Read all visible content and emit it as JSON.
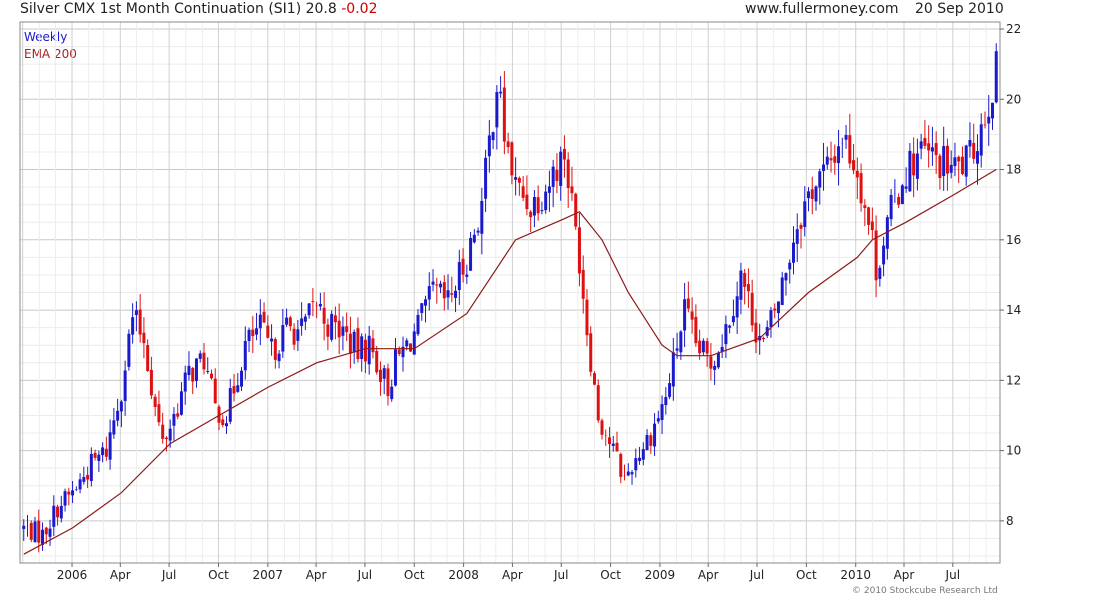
{
  "header": {
    "title": "Silver CMX 1st Month Continuation (SI1) 20.8",
    "change": "-0.02",
    "site": "www.fullermoney.com",
    "date": "20 Sep 2010",
    "copyright": "© 2010 Stockcube Research Ltd"
  },
  "legend": {
    "primary": "Weekly",
    "overlay": "EMA 200"
  },
  "colors": {
    "up": "#1a1acc",
    "down": "#dd1111",
    "ema": "#8b1a1a",
    "grid": "#d8d8d8"
  },
  "chart_data": {
    "type": "candlestick",
    "timeframe": "Weekly",
    "ylim": [
      6.8,
      22.2
    ],
    "y_ticks": [
      8,
      10,
      12,
      14,
      16,
      18,
      20,
      22
    ],
    "x_ticks": [
      "2006",
      "Apr",
      "Jul",
      "Oct",
      "2007",
      "Apr",
      "Jul",
      "Oct",
      "2008",
      "Apr",
      "Jul",
      "Oct",
      "2009",
      "Apr",
      "Jul",
      "Oct",
      "2010",
      "Apr",
      "Jul"
    ],
    "grid": true,
    "close_path": [
      [
        "2005-10-03",
        7.8
      ],
      [
        "2005-11-07",
        7.6
      ],
      [
        "2005-12-05",
        8.4
      ],
      [
        "2006-01-02",
        8.8
      ],
      [
        "2006-02-06",
        9.6
      ],
      [
        "2006-03-06",
        10.0
      ],
      [
        "2006-04-03",
        11.8
      ],
      [
        "2006-04-24",
        13.8
      ],
      [
        "2006-05-15",
        13.2
      ],
      [
        "2006-06-05",
        11.2
      ],
      [
        "2006-06-19",
        10.2
      ],
      [
        "2006-07-10",
        11.0
      ],
      [
        "2006-08-07",
        12.2
      ],
      [
        "2006-09-04",
        12.6
      ],
      [
        "2006-09-25",
        11.2
      ],
      [
        "2006-10-16",
        11.0
      ],
      [
        "2006-11-20",
        13.0
      ],
      [
        "2006-12-18",
        13.5
      ],
      [
        "2007-01-08",
        12.8
      ],
      [
        "2007-02-05",
        13.5
      ],
      [
        "2007-03-05",
        13.4
      ],
      [
        "2007-04-02",
        14.2
      ],
      [
        "2007-04-23",
        13.6
      ],
      [
        "2007-05-21",
        13.4
      ],
      [
        "2007-06-18",
        12.8
      ],
      [
        "2007-07-09",
        13.0
      ],
      [
        "2007-08-13",
        11.8
      ],
      [
        "2007-08-27",
        12.5
      ],
      [
        "2007-09-17",
        13.0
      ],
      [
        "2007-10-08",
        13.5
      ],
      [
        "2007-11-05",
        14.5
      ],
      [
        "2007-12-03",
        14.2
      ],
      [
        "2008-01-07",
        15.5
      ],
      [
        "2008-02-04",
        17.0
      ],
      [
        "2008-03-03",
        20.5
      ],
      [
        "2008-03-17",
        19.0
      ],
      [
        "2008-04-07",
        17.5
      ],
      [
        "2008-05-05",
        17.0
      ],
      [
        "2008-06-02",
        17.5
      ],
      [
        "2008-07-07",
        18.5
      ],
      [
        "2008-08-04",
        15.5
      ],
      [
        "2008-08-18",
        13.5
      ],
      [
        "2008-09-08",
        11.0
      ],
      [
        "2008-10-06",
        10.0
      ],
      [
        "2008-10-27",
        9.2
      ],
      [
        "2008-11-17",
        9.8
      ],
      [
        "2008-12-15",
        10.5
      ],
      [
        "2009-01-12",
        11.5
      ],
      [
        "2009-02-16",
        14.0
      ],
      [
        "2009-03-09",
        13.0
      ],
      [
        "2009-04-06",
        12.5
      ],
      [
        "2009-05-04",
        13.5
      ],
      [
        "2009-06-01",
        15.0
      ],
      [
        "2009-06-29",
        13.5
      ],
      [
        "2009-07-13",
        13.0
      ],
      [
        "2009-08-10",
        14.3
      ],
      [
        "2009-09-14",
        16.5
      ],
      [
        "2009-10-12",
        17.5
      ],
      [
        "2009-11-09",
        18.0
      ],
      [
        "2009-12-07",
        19.0
      ],
      [
        "2010-01-04",
        18.0
      ],
      [
        "2010-02-01",
        16.0
      ],
      [
        "2010-02-08",
        15.2
      ],
      [
        "2010-03-08",
        16.8
      ],
      [
        "2010-04-05",
        18.0
      ],
      [
        "2010-05-03",
        18.5
      ],
      [
        "2010-06-07",
        18.2
      ],
      [
        "2010-07-05",
        18.0
      ],
      [
        "2010-08-02",
        18.3
      ],
      [
        "2010-08-30",
        19.6
      ],
      [
        "2010-09-20",
        20.8
      ]
    ],
    "ema_path": [
      [
        "2005-10-03",
        7.05
      ],
      [
        "2006-01-02",
        7.8
      ],
      [
        "2006-04-03",
        8.8
      ],
      [
        "2006-07-03",
        10.2
      ],
      [
        "2006-10-02",
        11.0
      ],
      [
        "2007-01-01",
        11.8
      ],
      [
        "2007-04-02",
        12.5
      ],
      [
        "2007-07-02",
        12.9
      ],
      [
        "2007-10-01",
        12.9
      ],
      [
        "2008-01-07",
        13.9
      ],
      [
        "2008-04-07",
        16.0
      ],
      [
        "2008-07-07",
        16.6
      ],
      [
        "2008-08-04",
        16.8
      ],
      [
        "2008-09-15",
        16.0
      ],
      [
        "2008-11-03",
        14.5
      ],
      [
        "2009-01-05",
        13.0
      ],
      [
        "2009-02-02",
        12.7
      ],
      [
        "2009-04-06",
        12.7
      ],
      [
        "2009-07-06",
        13.2
      ],
      [
        "2009-10-05",
        14.5
      ],
      [
        "2010-01-04",
        15.5
      ],
      [
        "2010-02-01",
        16.0
      ],
      [
        "2010-04-05",
        16.5
      ],
      [
        "2010-07-05",
        17.3
      ],
      [
        "2010-09-20",
        18.0
      ]
    ]
  }
}
